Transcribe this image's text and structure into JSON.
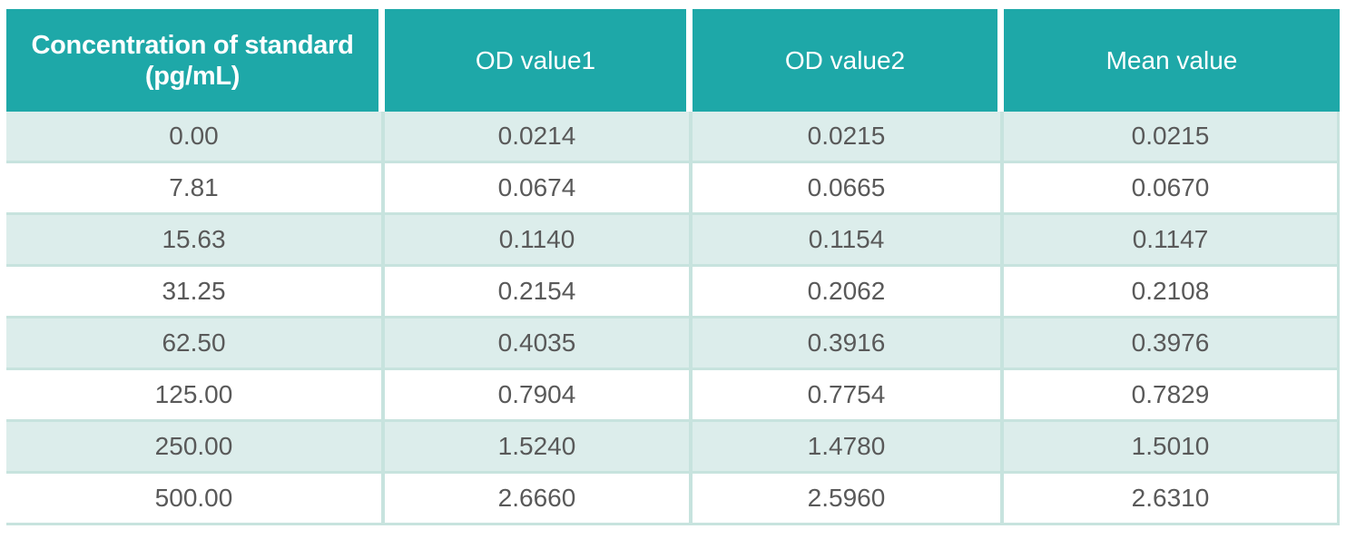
{
  "colors": {
    "page_bg": "#ffffff",
    "header_bg": "#1ea8a8",
    "header_text": "#ffffff",
    "row_odd_bg": "#dcedeb",
    "row_even_bg": "#ffffff",
    "grid_border": "#c7e3de",
    "cell_text": "#595959"
  },
  "table": {
    "header": [
      {
        "label": "Concentration of standard",
        "sublabel": "(pg/mL)"
      },
      {
        "label": "OD value1",
        "sublabel": ""
      },
      {
        "label": "OD value2",
        "sublabel": ""
      },
      {
        "label": "Mean value",
        "sublabel": ""
      }
    ],
    "rows": [
      [
        "0.00",
        "0.0214",
        "0.0215",
        "0.0215"
      ],
      [
        "7.81",
        "0.0674",
        "0.0665",
        "0.0670"
      ],
      [
        "15.63",
        "0.1140",
        "0.1154",
        "0.1147"
      ],
      [
        "31.25",
        "0.2154",
        "0.2062",
        "0.2108"
      ],
      [
        "62.50",
        "0.4035",
        "0.3916",
        "0.3976"
      ],
      [
        "125.00",
        "0.7904",
        "0.7754",
        "0.7829"
      ],
      [
        "250.00",
        "1.5240",
        "1.4780",
        "1.5010"
      ],
      [
        "500.00",
        "2.6660",
        "2.5960",
        "2.6310"
      ]
    ]
  },
  "chart_data": {
    "type": "table",
    "title": "",
    "columns": [
      "Concentration of standard (pg/mL)",
      "OD value1",
      "OD value2",
      "Mean value"
    ],
    "rows": [
      [
        0.0,
        0.0214,
        0.0215,
        0.0215
      ],
      [
        7.81,
        0.0674,
        0.0665,
        0.067
      ],
      [
        15.63,
        0.114,
        0.1154,
        0.1147
      ],
      [
        31.25,
        0.2154,
        0.2062,
        0.2108
      ],
      [
        62.5,
        0.4035,
        0.3916,
        0.3976
      ],
      [
        125.0,
        0.7904,
        0.7754,
        0.7829
      ],
      [
        250.0,
        1.524,
        1.478,
        1.501
      ],
      [
        500.0,
        2.666,
        2.596,
        2.631
      ]
    ]
  }
}
